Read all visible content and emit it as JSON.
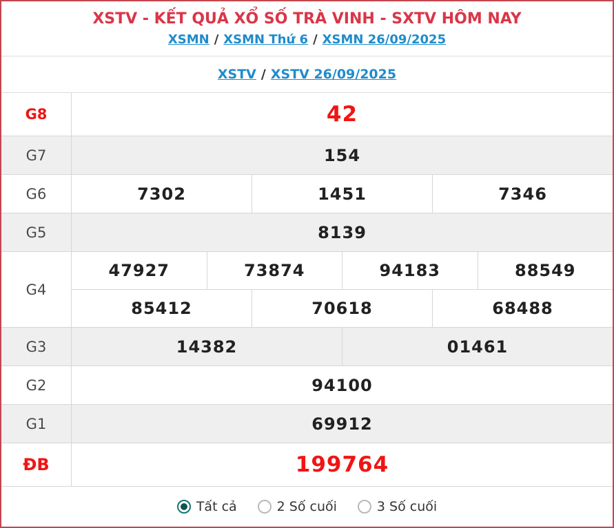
{
  "header": {
    "title": "XSTV - KẾT QUẢ XỔ SỐ TRÀ VINH - SXTV HÔM NAY",
    "separator": "/",
    "breadcrumb1": [
      {
        "label": "XSMN"
      },
      {
        "label": "XSMN Thứ 6"
      },
      {
        "label": "XSMN 26/09/2025"
      }
    ],
    "breadcrumb2": [
      {
        "label": "XSTV"
      },
      {
        "label": "XSTV 26/09/2025"
      }
    ]
  },
  "results_table": {
    "rows": [
      {
        "prize": "G8",
        "highlight": true,
        "groups": [
          [
            "42"
          ]
        ]
      },
      {
        "prize": "G7",
        "highlight": false,
        "groups": [
          [
            "154"
          ]
        ]
      },
      {
        "prize": "G6",
        "highlight": false,
        "groups": [
          [
            "7302",
            "1451",
            "7346"
          ]
        ]
      },
      {
        "prize": "G5",
        "highlight": false,
        "groups": [
          [
            "8139"
          ]
        ]
      },
      {
        "prize": "G4",
        "highlight": false,
        "groups": [
          [
            "47927",
            "73874",
            "94183",
            "88549"
          ],
          [
            "85412",
            "70618",
            "68488"
          ]
        ]
      },
      {
        "prize": "G3",
        "highlight": false,
        "groups": [
          [
            "14382",
            "01461"
          ]
        ]
      },
      {
        "prize": "G2",
        "highlight": false,
        "groups": [
          [
            "94100"
          ]
        ]
      },
      {
        "prize": "G1",
        "highlight": false,
        "groups": [
          [
            "69912"
          ]
        ]
      },
      {
        "prize": "ĐB",
        "highlight": true,
        "groups": [
          [
            "199764"
          ]
        ]
      }
    ]
  },
  "footer": {
    "options": [
      {
        "label": "Tất cả",
        "selected": true
      },
      {
        "label": "2 Số cuối",
        "selected": false
      },
      {
        "label": "3 Số cuối",
        "selected": false
      }
    ]
  },
  "colors": {
    "border-red": "#c3464f",
    "title-red": "#d93648",
    "num-red": "#f11414",
    "link-blue": "#1f8ccb",
    "row-gray": "#efefef",
    "border-gray": "#d6d6d6",
    "radio-teal": "#17756e",
    "radio-dot": "#10544f"
  }
}
